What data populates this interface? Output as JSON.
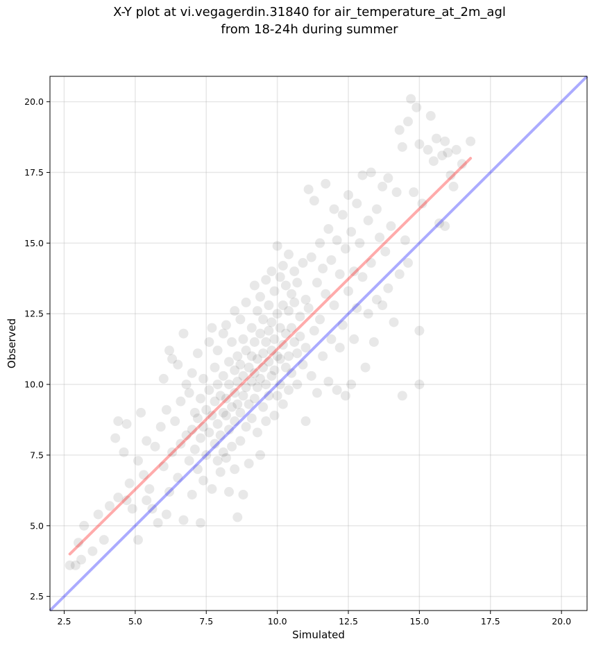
{
  "chart_data": {
    "type": "scatter",
    "title_line1": "X-Y plot at vi.vegagerdin.31840 for air_temperature_at_2m_agl",
    "title_line2": "from 18-24h during summer",
    "xlabel": "Simulated",
    "ylabel": "Observed",
    "xlim": [
      2.0,
      20.9
    ],
    "ylim": [
      2.0,
      20.9
    ],
    "xticks": [
      "2.5",
      "5.0",
      "7.5",
      "10.0",
      "12.5",
      "15.0",
      "17.5",
      "20.0"
    ],
    "yticks": [
      "2.5",
      "5.0",
      "7.5",
      "10.0",
      "12.5",
      "15.0",
      "17.5",
      "20.0"
    ],
    "tick_values": [
      2.5,
      5.0,
      7.5,
      10.0,
      12.5,
      15.0,
      17.5,
      20.0
    ],
    "grid": true,
    "point_color": "#000000",
    "point_alpha": 0.09,
    "identity_line": {
      "color": "#0000ff",
      "alpha": 0.33,
      "x": [
        2.0,
        20.9
      ],
      "y": [
        2.0,
        20.9
      ]
    },
    "fit_line": {
      "color": "#ff0000",
      "alpha": 0.33,
      "x": [
        2.7,
        16.8
      ],
      "y": [
        4.0,
        18.0
      ]
    },
    "points": [
      [
        2.7,
        3.6
      ],
      [
        2.9,
        3.6
      ],
      [
        3.0,
        4.4
      ],
      [
        3.1,
        3.8
      ],
      [
        3.2,
        5.0
      ],
      [
        3.5,
        4.1
      ],
      [
        3.7,
        5.4
      ],
      [
        3.9,
        4.5
      ],
      [
        4.1,
        5.7
      ],
      [
        4.3,
        8.1
      ],
      [
        4.4,
        8.7
      ],
      [
        4.4,
        6.0
      ],
      [
        4.6,
        7.6
      ],
      [
        4.7,
        8.6
      ],
      [
        4.7,
        5.9
      ],
      [
        4.8,
        6.5
      ],
      [
        4.9,
        5.6
      ],
      [
        5.1,
        4.5
      ],
      [
        5.1,
        7.3
      ],
      [
        5.2,
        9.0
      ],
      [
        5.3,
        6.8
      ],
      [
        5.4,
        8.0
      ],
      [
        5.4,
        5.9
      ],
      [
        5.5,
        6.3
      ],
      [
        5.6,
        5.6
      ],
      [
        5.7,
        7.8
      ],
      [
        5.8,
        5.1
      ],
      [
        5.9,
        8.5
      ],
      [
        6.0,
        10.2
      ],
      [
        6.0,
        7.1
      ],
      [
        6.1,
        5.4
      ],
      [
        6.1,
        9.1
      ],
      [
        6.2,
        11.2
      ],
      [
        6.2,
        6.2
      ],
      [
        6.3,
        7.6
      ],
      [
        6.3,
        10.9
      ],
      [
        6.4,
        8.7
      ],
      [
        6.5,
        6.7
      ],
      [
        6.5,
        10.7
      ],
      [
        6.6,
        9.4
      ],
      [
        6.6,
        7.9
      ],
      [
        6.7,
        5.2
      ],
      [
        6.7,
        11.8
      ],
      [
        6.8,
        10.0
      ],
      [
        6.8,
        8.2
      ],
      [
        6.9,
        7.3
      ],
      [
        6.9,
        9.7
      ],
      [
        7.0,
        10.4
      ],
      [
        7.0,
        8.4
      ],
      [
        7.0,
        6.1
      ],
      [
        7.1,
        9.0
      ],
      [
        7.1,
        7.7
      ],
      [
        7.2,
        11.1
      ],
      [
        7.2,
        8.8
      ],
      [
        7.2,
        7.0
      ],
      [
        7.3,
        5.1
      ],
      [
        7.3,
        9.5
      ],
      [
        7.3,
        8.1
      ],
      [
        7.4,
        10.2
      ],
      [
        7.4,
        8.5
      ],
      [
        7.4,
        6.6
      ],
      [
        7.5,
        9.1
      ],
      [
        7.5,
        7.5
      ],
      [
        7.6,
        11.5
      ],
      [
        7.6,
        9.8
      ],
      [
        7.6,
        8.3
      ],
      [
        7.7,
        12.0
      ],
      [
        7.7,
        8.9
      ],
      [
        7.7,
        6.3
      ],
      [
        7.8,
        10.6
      ],
      [
        7.8,
        9.4
      ],
      [
        7.8,
        7.9
      ],
      [
        7.9,
        11.2
      ],
      [
        7.9,
        10.0
      ],
      [
        7.9,
        8.6
      ],
      [
        7.9,
        7.3
      ],
      [
        8.0,
        9.6
      ],
      [
        8.0,
        8.2
      ],
      [
        8.0,
        6.9
      ],
      [
        8.1,
        11.8
      ],
      [
        8.1,
        10.3
      ],
      [
        8.1,
        9.0
      ],
      [
        8.1,
        7.6
      ],
      [
        8.2,
        12.1
      ],
      [
        8.2,
        9.5
      ],
      [
        8.2,
        8.9
      ],
      [
        8.2,
        7.4
      ],
      [
        8.3,
        10.8
      ],
      [
        8.3,
        10.0
      ],
      [
        8.3,
        8.4
      ],
      [
        8.3,
        6.2
      ],
      [
        8.4,
        11.5
      ],
      [
        8.4,
        9.2
      ],
      [
        8.4,
        7.8
      ],
      [
        8.5,
        12.6
      ],
      [
        8.5,
        10.5
      ],
      [
        8.5,
        9.7
      ],
      [
        8.5,
        8.7
      ],
      [
        8.5,
        7.0
      ],
      [
        8.6,
        11.0
      ],
      [
        8.6,
        10.1
      ],
      [
        8.6,
        9.3
      ],
      [
        8.6,
        5.3
      ],
      [
        8.7,
        12.3
      ],
      [
        8.7,
        10.7
      ],
      [
        8.7,
        9.0
      ],
      [
        8.7,
        8.0
      ],
      [
        8.8,
        11.6
      ],
      [
        8.8,
        10.3
      ],
      [
        8.8,
        9.6
      ],
      [
        8.8,
        6.1
      ],
      [
        8.9,
        12.9
      ],
      [
        8.9,
        11.2
      ],
      [
        8.9,
        9.9
      ],
      [
        8.9,
        8.5
      ],
      [
        9.0,
        10.6
      ],
      [
        9.0,
        9.3
      ],
      [
        9.0,
        7.2
      ],
      [
        9.1,
        12.0
      ],
      [
        9.1,
        11.0
      ],
      [
        9.1,
        10.1
      ],
      [
        9.1,
        8.8
      ],
      [
        9.2,
        13.5
      ],
      [
        9.2,
        11.5
      ],
      [
        9.2,
        10.4
      ],
      [
        9.2,
        9.5
      ],
      [
        9.3,
        12.6
      ],
      [
        9.3,
        10.9
      ],
      [
        9.3,
        9.9
      ],
      [
        9.3,
        8.3
      ],
      [
        9.4,
        13.1
      ],
      [
        9.4,
        11.8
      ],
      [
        9.4,
        10.2
      ],
      [
        9.4,
        7.5
      ],
      [
        9.5,
        12.3
      ],
      [
        9.5,
        11.1
      ],
      [
        9.5,
        10.6
      ],
      [
        9.5,
        9.2
      ],
      [
        9.6,
        13.7
      ],
      [
        9.6,
        11.5
      ],
      [
        9.6,
        10.0
      ],
      [
        9.6,
        8.7
      ],
      [
        9.7,
        12.8
      ],
      [
        9.7,
        11.9
      ],
      [
        9.7,
        10.8
      ],
      [
        9.7,
        9.6
      ],
      [
        9.8,
        14.0
      ],
      [
        9.8,
        12.2
      ],
      [
        9.8,
        11.2
      ],
      [
        9.8,
        10.3
      ],
      [
        9.9,
        13.3
      ],
      [
        9.9,
        11.6
      ],
      [
        9.9,
        10.5
      ],
      [
        9.9,
        8.9
      ],
      [
        10.0,
        14.9
      ],
      [
        10.0,
        12.5
      ],
      [
        10.0,
        11.0
      ],
      [
        10.0,
        9.6
      ],
      [
        10.1,
        13.8
      ],
      [
        10.1,
        12.0
      ],
      [
        10.1,
        10.9
      ],
      [
        10.1,
        10.0
      ],
      [
        10.2,
        14.2
      ],
      [
        10.2,
        12.8
      ],
      [
        10.2,
        11.4
      ],
      [
        10.2,
        9.3
      ],
      [
        10.3,
        13.5
      ],
      [
        10.3,
        11.8
      ],
      [
        10.3,
        10.6
      ],
      [
        10.4,
        14.6
      ],
      [
        10.4,
        12.6
      ],
      [
        10.4,
        11.0
      ],
      [
        10.4,
        9.8
      ],
      [
        10.5,
        13.2
      ],
      [
        10.5,
        12.0
      ],
      [
        10.5,
        10.4
      ],
      [
        10.6,
        14.0
      ],
      [
        10.6,
        12.9
      ],
      [
        10.6,
        11.5
      ],
      [
        10.7,
        13.6
      ],
      [
        10.7,
        11.1
      ],
      [
        10.7,
        10.0
      ],
      [
        10.8,
        12.4
      ],
      [
        10.8,
        11.7
      ],
      [
        10.9,
        14.3
      ],
      [
        10.9,
        10.7
      ],
      [
        11.0,
        13.0
      ],
      [
        11.0,
        11.3
      ],
      [
        11.0,
        8.7
      ],
      [
        11.1,
        16.9
      ],
      [
        11.1,
        12.7
      ],
      [
        11.2,
        14.5
      ],
      [
        11.2,
        10.3
      ],
      [
        11.3,
        16.5
      ],
      [
        11.3,
        11.9
      ],
      [
        11.4,
        13.6
      ],
      [
        11.4,
        9.7
      ],
      [
        11.5,
        15.0
      ],
      [
        11.5,
        12.3
      ],
      [
        11.6,
        14.1
      ],
      [
        11.6,
        11.0
      ],
      [
        11.7,
        17.1
      ],
      [
        11.7,
        13.2
      ],
      [
        11.8,
        15.5
      ],
      [
        11.8,
        10.1
      ],
      [
        11.9,
        14.4
      ],
      [
        11.9,
        11.6
      ],
      [
        12.0,
        16.2
      ],
      [
        12.0,
        12.8
      ],
      [
        12.1,
        15.1
      ],
      [
        12.1,
        9.8
      ],
      [
        12.2,
        13.9
      ],
      [
        12.2,
        11.3
      ],
      [
        12.3,
        16.0
      ],
      [
        12.3,
        12.1
      ],
      [
        12.4,
        14.8
      ],
      [
        12.4,
        9.6
      ],
      [
        12.5,
        16.7
      ],
      [
        12.5,
        13.3
      ],
      [
        12.6,
        15.4
      ],
      [
        12.6,
        10.0
      ],
      [
        12.7,
        14.0
      ],
      [
        12.7,
        11.6
      ],
      [
        12.8,
        16.4
      ],
      [
        12.8,
        12.7
      ],
      [
        12.9,
        15.0
      ],
      [
        13.0,
        17.4
      ],
      [
        13.0,
        13.8
      ],
      [
        13.1,
        10.6
      ],
      [
        13.2,
        15.8
      ],
      [
        13.2,
        12.5
      ],
      [
        13.3,
        17.5
      ],
      [
        13.3,
        14.3
      ],
      [
        13.4,
        11.5
      ],
      [
        13.5,
        16.2
      ],
      [
        13.5,
        13.0
      ],
      [
        13.6,
        15.2
      ],
      [
        13.7,
        17.0
      ],
      [
        13.7,
        12.8
      ],
      [
        13.8,
        14.7
      ],
      [
        13.9,
        17.3
      ],
      [
        13.9,
        13.4
      ],
      [
        14.0,
        15.6
      ],
      [
        14.1,
        12.2
      ],
      [
        14.2,
        16.8
      ],
      [
        14.3,
        13.9
      ],
      [
        14.3,
        19.0
      ],
      [
        14.4,
        9.6
      ],
      [
        14.4,
        18.4
      ],
      [
        14.5,
        15.1
      ],
      [
        14.6,
        19.3
      ],
      [
        14.6,
        14.3
      ],
      [
        14.7,
        20.1
      ],
      [
        14.8,
        16.8
      ],
      [
        14.9,
        19.8
      ],
      [
        15.0,
        11.9
      ],
      [
        15.0,
        18.5
      ],
      [
        15.0,
        10.0
      ],
      [
        15.1,
        16.4
      ],
      [
        15.3,
        18.3
      ],
      [
        15.4,
        19.5
      ],
      [
        15.5,
        17.9
      ],
      [
        15.6,
        18.7
      ],
      [
        15.7,
        15.7
      ],
      [
        15.8,
        18.1
      ],
      [
        15.9,
        18.6
      ],
      [
        15.9,
        15.6
      ],
      [
        16.0,
        18.2
      ],
      [
        16.1,
        17.4
      ],
      [
        16.2,
        17.0
      ],
      [
        16.3,
        18.3
      ],
      [
        16.5,
        17.8
      ],
      [
        16.8,
        18.6
      ]
    ]
  }
}
